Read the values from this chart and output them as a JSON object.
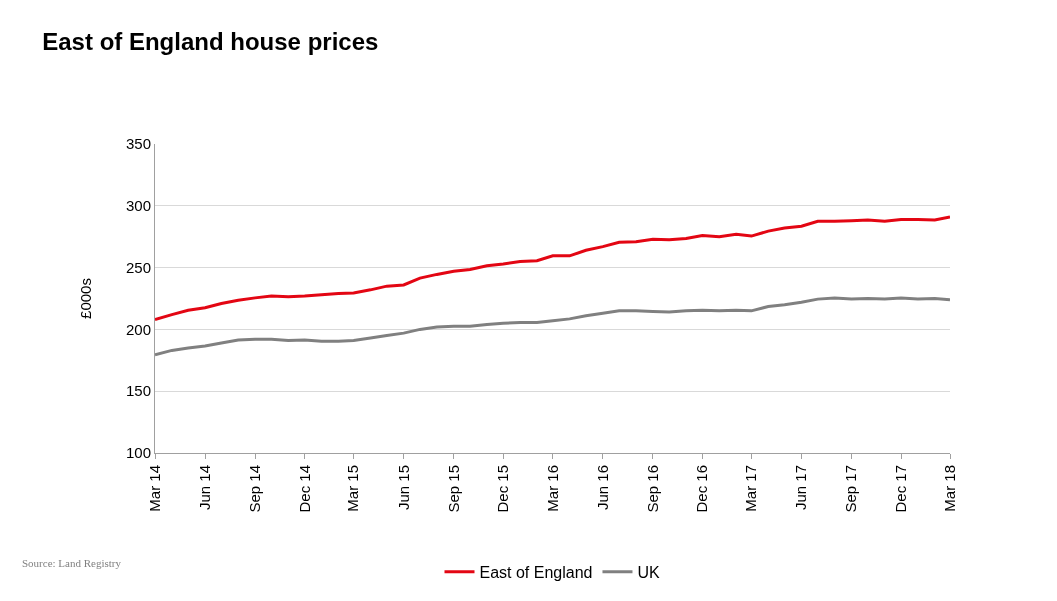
{
  "chart_data": {
    "type": "line",
    "title": "East of England house prices",
    "ylabel": "£000s",
    "annotations": [
      "Source: Land Registry"
    ],
    "x": [
      "2014-03",
      "2014-04",
      "2014-05",
      "2014-06",
      "2014-07",
      "2014-08",
      "2014-09",
      "2014-10",
      "2014-11",
      "2014-12",
      "2015-01",
      "2015-02",
      "2015-03",
      "2015-04",
      "2015-05",
      "2015-06",
      "2015-07",
      "2015-08",
      "2015-09",
      "2015-10",
      "2015-11",
      "2015-12",
      "2016-01",
      "2016-02",
      "2016-03",
      "2016-04",
      "2016-05",
      "2016-06",
      "2016-07",
      "2016-08",
      "2016-09",
      "2016-10",
      "2016-11",
      "2016-12",
      "2017-01",
      "2017-02",
      "2017-03",
      "2017-04",
      "2017-05",
      "2017-06",
      "2017-07",
      "2017-08",
      "2017-09",
      "2017-10",
      "2017-11",
      "2017-12",
      "2018-01",
      "2018-02",
      "2018-03"
    ],
    "series": [
      {
        "name": "East of England",
        "color": "#e30613",
        "values": [
          208,
          212,
          215.5,
          217.5,
          221,
          223.5,
          225.5,
          227,
          226.5,
          227,
          228,
          229,
          229.5,
          232,
          235,
          236,
          241.5,
          244.5,
          247,
          248.5,
          251.5,
          253,
          255,
          255.5,
          259.5,
          259.5,
          264,
          267,
          270.5,
          271,
          273,
          272.5,
          273.5,
          276,
          275,
          277,
          275.5,
          279.5,
          282,
          283.5,
          287.5,
          287.5,
          288,
          288.5,
          287.5,
          289,
          289,
          288.5,
          291
        ]
      },
      {
        "name": "UK",
        "color": "#808080",
        "values": [
          179.5,
          183,
          185,
          186.5,
          189,
          191.5,
          192,
          192,
          191,
          191.5,
          190.5,
          190.5,
          191,
          193,
          195,
          197,
          200,
          202,
          202.5,
          202.5,
          204,
          205,
          205.5,
          205.5,
          207,
          208.5,
          211,
          213,
          215,
          215,
          214.5,
          214,
          215,
          215.5,
          215,
          215.5,
          215,
          218.5,
          220,
          222,
          224.5,
          225.5,
          224.5,
          225,
          224.5,
          225.5,
          224.5,
          225,
          224
        ]
      }
    ],
    "xlim": [
      "2014-03",
      "2018-03"
    ],
    "xticks": [
      {
        "value": "2014-03",
        "label": "Mar 14"
      },
      {
        "value": "2014-06",
        "label": "Jun 14"
      },
      {
        "value": "2014-09",
        "label": "Sep 14"
      },
      {
        "value": "2014-12",
        "label": "Dec 14"
      },
      {
        "value": "2015-03",
        "label": "Mar 15"
      },
      {
        "value": "2015-06",
        "label": "Jun 15"
      },
      {
        "value": "2015-09",
        "label": "Sep 15"
      },
      {
        "value": "2015-12",
        "label": "Dec 15"
      },
      {
        "value": "2016-03",
        "label": "Mar 16"
      },
      {
        "value": "2016-06",
        "label": "Jun 16"
      },
      {
        "value": "2016-09",
        "label": "Sep 16"
      },
      {
        "value": "2016-12",
        "label": "Dec 16"
      },
      {
        "value": "2017-03",
        "label": "Mar 17"
      },
      {
        "value": "2017-06",
        "label": "Jun 17"
      },
      {
        "value": "2017-09",
        "label": "Sep 17"
      },
      {
        "value": "2017-12",
        "label": "Dec 17"
      },
      {
        "value": "2018-03",
        "label": "Mar 18"
      }
    ],
    "ylim": [
      100,
      350
    ],
    "yticks": [
      100,
      150,
      200,
      250,
      300,
      350
    ],
    "grid": "y",
    "legend": "bottom",
    "marker": "none",
    "line_style": "solid"
  }
}
